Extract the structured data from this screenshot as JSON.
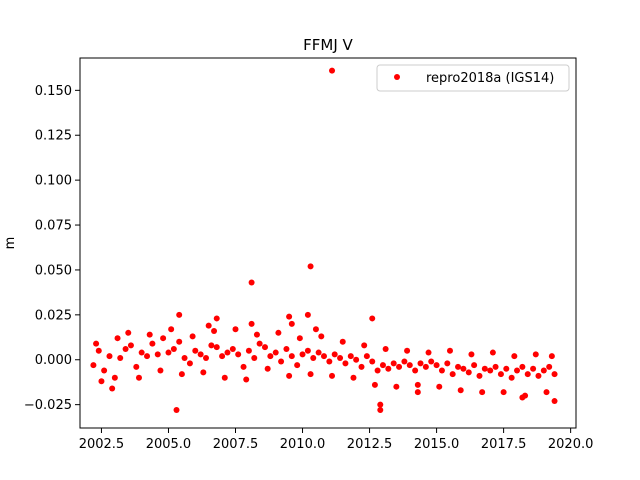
{
  "chart_data": {
    "type": "scatter",
    "title": "FFMJ V",
    "xlabel": "",
    "ylabel": "m",
    "xlim": [
      2001.7,
      2020.2
    ],
    "ylim": [
      -0.038,
      0.168
    ],
    "xticks": [
      2002.5,
      2005.0,
      2007.5,
      2010.0,
      2012.5,
      2015.0,
      2017.5,
      2020.0
    ],
    "xtick_labels": [
      "2002.5",
      "2005.0",
      "2007.5",
      "2010.0",
      "2012.5",
      "2015.0",
      "2017.5",
      "2020.0"
    ],
    "yticks": [
      -0.025,
      0.0,
      0.025,
      0.05,
      0.075,
      0.1,
      0.125,
      0.15
    ],
    "ytick_labels": [
      "−0.025",
      "0.000",
      "0.025",
      "0.050",
      "0.075",
      "0.100",
      "0.125",
      "0.150"
    ],
    "grid": false,
    "legend_position": "top-right",
    "series": [
      {
        "name": "repro2018a (IGS14)",
        "color": "#ff0000",
        "marker": "circle",
        "points": [
          [
            2002.2,
            -0.003
          ],
          [
            2002.4,
            0.005
          ],
          [
            2002.6,
            -0.006
          ],
          [
            2002.8,
            0.002
          ],
          [
            2003.0,
            -0.01
          ],
          [
            2003.2,
            0.001
          ],
          [
            2003.4,
            0.006
          ],
          [
            2003.6,
            0.008
          ],
          [
            2003.8,
            -0.004
          ],
          [
            2004.0,
            0.004
          ],
          [
            2004.2,
            0.002
          ],
          [
            2004.4,
            0.009
          ],
          [
            2004.6,
            0.003
          ],
          [
            2004.8,
            0.012
          ],
          [
            2005.0,
            0.004
          ],
          [
            2005.2,
            0.006
          ],
          [
            2005.4,
            0.01
          ],
          [
            2005.6,
            0.001
          ],
          [
            2005.8,
            -0.002
          ],
          [
            2006.0,
            0.005
          ],
          [
            2006.2,
            0.003
          ],
          [
            2006.4,
            0.001
          ],
          [
            2006.6,
            0.008
          ],
          [
            2006.8,
            0.007
          ],
          [
            2007.0,
            0.002
          ],
          [
            2007.2,
            0.004
          ],
          [
            2007.4,
            0.006
          ],
          [
            2007.6,
            0.003
          ],
          [
            2007.8,
            -0.004
          ],
          [
            2008.0,
            0.005
          ],
          [
            2008.2,
            0.001
          ],
          [
            2008.4,
            0.009
          ],
          [
            2008.6,
            0.007
          ],
          [
            2008.8,
            0.002
          ],
          [
            2009.0,
            0.004
          ],
          [
            2009.2,
            -0.001
          ],
          [
            2009.4,
            0.006
          ],
          [
            2009.6,
            0.002
          ],
          [
            2009.8,
            -0.003
          ],
          [
            2010.0,
            0.003
          ],
          [
            2010.2,
            0.005
          ],
          [
            2010.4,
            0.001
          ],
          [
            2010.6,
            0.004
          ],
          [
            2010.8,
            0.002
          ],
          [
            2011.0,
            -0.001
          ],
          [
            2011.2,
            0.003
          ],
          [
            2011.4,
            0.001
          ],
          [
            2011.6,
            -0.002
          ],
          [
            2011.8,
            0.002
          ],
          [
            2012.0,
            0.0
          ],
          [
            2012.2,
            -0.004
          ],
          [
            2012.4,
            0.002
          ],
          [
            2012.6,
            -0.001
          ],
          [
            2012.8,
            -0.006
          ],
          [
            2013.0,
            -0.003
          ],
          [
            2013.2,
            -0.005
          ],
          [
            2013.4,
            -0.002
          ],
          [
            2013.6,
            -0.004
          ],
          [
            2013.8,
            -0.001
          ],
          [
            2014.0,
            -0.003
          ],
          [
            2014.2,
            -0.006
          ],
          [
            2014.4,
            -0.002
          ],
          [
            2014.6,
            -0.004
          ],
          [
            2014.8,
            -0.001
          ],
          [
            2015.0,
            -0.003
          ],
          [
            2015.2,
            -0.006
          ],
          [
            2015.4,
            -0.002
          ],
          [
            2015.6,
            -0.008
          ],
          [
            2015.8,
            -0.004
          ],
          [
            2016.0,
            -0.005
          ],
          [
            2016.2,
            -0.007
          ],
          [
            2016.4,
            -0.003
          ],
          [
            2016.6,
            -0.009
          ],
          [
            2016.8,
            -0.005
          ],
          [
            2017.0,
            -0.006
          ],
          [
            2017.2,
            -0.004
          ],
          [
            2017.4,
            -0.008
          ],
          [
            2017.6,
            -0.005
          ],
          [
            2017.8,
            -0.01
          ],
          [
            2018.0,
            -0.006
          ],
          [
            2018.2,
            -0.004
          ],
          [
            2018.4,
            -0.008
          ],
          [
            2018.6,
            -0.005
          ],
          [
            2018.8,
            -0.009
          ],
          [
            2019.0,
            -0.006
          ],
          [
            2019.2,
            -0.004
          ],
          [
            2019.4,
            -0.008
          ],
          [
            2002.3,
            0.009
          ],
          [
            2002.5,
            -0.012
          ],
          [
            2002.9,
            -0.016
          ],
          [
            2003.1,
            0.012
          ],
          [
            2003.5,
            0.015
          ],
          [
            2003.9,
            -0.01
          ],
          [
            2004.3,
            0.014
          ],
          [
            2004.7,
            -0.006
          ],
          [
            2005.1,
            0.017
          ],
          [
            2005.5,
            -0.008
          ],
          [
            2005.9,
            0.013
          ],
          [
            2006.3,
            -0.007
          ],
          [
            2006.7,
            0.016
          ],
          [
            2007.1,
            -0.01
          ],
          [
            2007.5,
            0.017
          ],
          [
            2007.9,
            -0.011
          ],
          [
            2008.3,
            0.014
          ],
          [
            2008.7,
            -0.005
          ],
          [
            2009.1,
            0.015
          ],
          [
            2009.5,
            -0.009
          ],
          [
            2009.9,
            0.012
          ],
          [
            2010.3,
            -0.008
          ],
          [
            2010.7,
            0.013
          ],
          [
            2011.1,
            -0.009
          ],
          [
            2011.5,
            0.01
          ],
          [
            2011.9,
            -0.01
          ],
          [
            2012.3,
            0.008
          ],
          [
            2012.7,
            -0.014
          ],
          [
            2013.1,
            0.006
          ],
          [
            2013.5,
            -0.015
          ],
          [
            2013.9,
            0.005
          ],
          [
            2014.3,
            -0.014
          ],
          [
            2014.7,
            0.004
          ],
          [
            2015.1,
            -0.015
          ],
          [
            2015.5,
            0.005
          ],
          [
            2015.9,
            -0.017
          ],
          [
            2016.3,
            0.003
          ],
          [
            2016.7,
            -0.018
          ],
          [
            2017.1,
            0.004
          ],
          [
            2017.5,
            -0.018
          ],
          [
            2017.9,
            0.002
          ],
          [
            2018.3,
            -0.02
          ],
          [
            2018.7,
            0.003
          ],
          [
            2019.1,
            -0.018
          ],
          [
            2019.3,
            0.002
          ],
          [
            2005.3,
            -0.028
          ],
          [
            2005.4,
            0.025
          ],
          [
            2006.5,
            0.019
          ],
          [
            2006.8,
            0.023
          ],
          [
            2008.1,
            0.043
          ],
          [
            2008.1,
            0.02
          ],
          [
            2009.5,
            0.024
          ],
          [
            2009.6,
            0.02
          ],
          [
            2010.2,
            0.025
          ],
          [
            2010.3,
            0.052
          ],
          [
            2010.5,
            0.017
          ],
          [
            2011.1,
            0.161
          ],
          [
            2012.6,
            0.023
          ],
          [
            2012.9,
            -0.025
          ],
          [
            2012.9,
            -0.028
          ],
          [
            2014.3,
            -0.018
          ],
          [
            2018.2,
            -0.021
          ],
          [
            2019.4,
            -0.023
          ]
        ]
      }
    ]
  }
}
